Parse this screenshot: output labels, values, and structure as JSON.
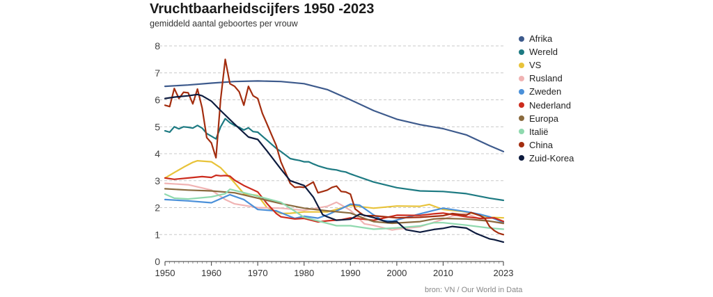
{
  "title": "Vruchtbaarheidscijfers 1950 -2023",
  "subtitle": "gemiddeld aantal geboortes per vrouw",
  "source": "bron: VN / Our World in Data",
  "chart_data": {
    "type": "line",
    "title": "Vruchtbaarheidscijfers 1950 -2023",
    "subtitle": "gemiddeld aantal geboortes per vrouw",
    "xlim": [
      1950,
      2023
    ],
    "ylim": [
      0,
      8
    ],
    "x_ticks": [
      1950,
      1960,
      1970,
      1980,
      1990,
      2000,
      2010,
      2023
    ],
    "y_ticks": [
      0,
      1,
      2,
      3,
      4,
      5,
      6,
      7,
      8
    ],
    "grid": "horizontal dashed",
    "legend_position": "right",
    "series": [
      {
        "name": "Afrika",
        "color": "#3d5a8c",
        "points": [
          [
            1950,
            6.5
          ],
          [
            1955,
            6.55
          ],
          [
            1960,
            6.62
          ],
          [
            1965,
            6.68
          ],
          [
            1970,
            6.7
          ],
          [
            1975,
            6.68
          ],
          [
            1980,
            6.6
          ],
          [
            1985,
            6.38
          ],
          [
            1990,
            6.0
          ],
          [
            1995,
            5.6
          ],
          [
            2000,
            5.28
          ],
          [
            2005,
            5.08
          ],
          [
            2010,
            4.93
          ],
          [
            2015,
            4.7
          ],
          [
            2020,
            4.3
          ],
          [
            2023,
            4.08
          ]
        ]
      },
      {
        "name": "Wereld",
        "color": "#1d7a82",
        "points": [
          [
            1950,
            4.85
          ],
          [
            1951,
            4.8
          ],
          [
            1952,
            5.0
          ],
          [
            1953,
            4.92
          ],
          [
            1954,
            5.0
          ],
          [
            1955,
            4.98
          ],
          [
            1956,
            4.95
          ],
          [
            1957,
            5.05
          ],
          [
            1958,
            4.95
          ],
          [
            1959,
            4.75
          ],
          [
            1960,
            4.65
          ],
          [
            1961,
            4.55
          ],
          [
            1962,
            5.0
          ],
          [
            1963,
            5.3
          ],
          [
            1964,
            5.15
          ],
          [
            1965,
            5.05
          ],
          [
            1966,
            4.98
          ],
          [
            1967,
            4.88
          ],
          [
            1968,
            4.96
          ],
          [
            1969,
            4.82
          ],
          [
            1970,
            4.8
          ],
          [
            1971,
            4.65
          ],
          [
            1972,
            4.5
          ],
          [
            1973,
            4.35
          ],
          [
            1974,
            4.2
          ],
          [
            1975,
            4.08
          ],
          [
            1976,
            3.95
          ],
          [
            1977,
            3.82
          ],
          [
            1978,
            3.78
          ],
          [
            1979,
            3.75
          ],
          [
            1980,
            3.7
          ],
          [
            1981,
            3.7
          ],
          [
            1982,
            3.62
          ],
          [
            1983,
            3.55
          ],
          [
            1984,
            3.5
          ],
          [
            1985,
            3.45
          ],
          [
            1986,
            3.42
          ],
          [
            1987,
            3.4
          ],
          [
            1988,
            3.35
          ],
          [
            1989,
            3.32
          ],
          [
            1990,
            3.25
          ],
          [
            1995,
            2.95
          ],
          [
            2000,
            2.74
          ],
          [
            2005,
            2.62
          ],
          [
            2010,
            2.6
          ],
          [
            2015,
            2.52
          ],
          [
            2020,
            2.35
          ],
          [
            2023,
            2.27
          ]
        ]
      },
      {
        "name": "VS",
        "color": "#e8c33a",
        "points": [
          [
            1950,
            3.1
          ],
          [
            1952,
            3.3
          ],
          [
            1954,
            3.5
          ],
          [
            1956,
            3.68
          ],
          [
            1957,
            3.74
          ],
          [
            1960,
            3.7
          ],
          [
            1962,
            3.48
          ],
          [
            1963,
            3.3
          ],
          [
            1965,
            2.92
          ],
          [
            1967,
            2.52
          ],
          [
            1970,
            2.45
          ],
          [
            1972,
            2.0
          ],
          [
            1975,
            1.78
          ],
          [
            1977,
            1.79
          ],
          [
            1980,
            1.84
          ],
          [
            1985,
            1.84
          ],
          [
            1990,
            2.08
          ],
          [
            1995,
            1.98
          ],
          [
            2000,
            2.06
          ],
          [
            2005,
            2.05
          ],
          [
            2007,
            2.12
          ],
          [
            2010,
            1.93
          ],
          [
            2015,
            1.84
          ],
          [
            2020,
            1.64
          ],
          [
            2023,
            1.62
          ]
        ]
      },
      {
        "name": "Rusland",
        "color": "#f0b3b3",
        "points": [
          [
            1950,
            2.9
          ],
          [
            1955,
            2.85
          ],
          [
            1960,
            2.65
          ],
          [
            1963,
            2.3
          ],
          [
            1965,
            2.14
          ],
          [
            1970,
            2.0
          ],
          [
            1975,
            1.98
          ],
          [
            1980,
            1.9
          ],
          [
            1985,
            2.05
          ],
          [
            1987,
            2.2
          ],
          [
            1988,
            2.1
          ],
          [
            1990,
            1.9
          ],
          [
            1993,
            1.4
          ],
          [
            1995,
            1.34
          ],
          [
            1999,
            1.17
          ],
          [
            2000,
            1.2
          ],
          [
            2005,
            1.29
          ],
          [
            2010,
            1.57
          ],
          [
            2012,
            1.69
          ],
          [
            2015,
            1.78
          ],
          [
            2018,
            1.58
          ],
          [
            2020,
            1.5
          ],
          [
            2023,
            1.41
          ]
        ]
      },
      {
        "name": "Zweden",
        "color": "#4a90d9",
        "points": [
          [
            1950,
            2.3
          ],
          [
            1955,
            2.25
          ],
          [
            1960,
            2.18
          ],
          [
            1964,
            2.48
          ],
          [
            1967,
            2.3
          ],
          [
            1970,
            1.93
          ],
          [
            1974,
            1.88
          ],
          [
            1978,
            1.6
          ],
          [
            1980,
            1.68
          ],
          [
            1983,
            1.61
          ],
          [
            1985,
            1.73
          ],
          [
            1988,
            1.96
          ],
          [
            1990,
            2.13
          ],
          [
            1992,
            2.09
          ],
          [
            1995,
            1.73
          ],
          [
            1997,
            1.52
          ],
          [
            1999,
            1.5
          ],
          [
            2000,
            1.54
          ],
          [
            2005,
            1.77
          ],
          [
            2008,
            1.9
          ],
          [
            2010,
            1.98
          ],
          [
            2015,
            1.85
          ],
          [
            2018,
            1.75
          ],
          [
            2020,
            1.66
          ],
          [
            2023,
            1.45
          ]
        ]
      },
      {
        "name": "Nederland",
        "color": "#cc2b1d",
        "points": [
          [
            1950,
            3.1
          ],
          [
            1952,
            3.05
          ],
          [
            1955,
            3.1
          ],
          [
            1958,
            3.15
          ],
          [
            1960,
            3.12
          ],
          [
            1961,
            3.2
          ],
          [
            1962,
            3.18
          ],
          [
            1963,
            3.19
          ],
          [
            1964,
            3.17
          ],
          [
            1965,
            3.02
          ],
          [
            1967,
            2.82
          ],
          [
            1970,
            2.58
          ],
          [
            1972,
            2.15
          ],
          [
            1974,
            1.78
          ],
          [
            1975,
            1.66
          ],
          [
            1978,
            1.58
          ],
          [
            1980,
            1.6
          ],
          [
            1983,
            1.47
          ],
          [
            1985,
            1.51
          ],
          [
            1988,
            1.55
          ],
          [
            1990,
            1.62
          ],
          [
            1995,
            1.53
          ],
          [
            2000,
            1.72
          ],
          [
            2005,
            1.71
          ],
          [
            2008,
            1.77
          ],
          [
            2010,
            1.8
          ],
          [
            2015,
            1.66
          ],
          [
            2018,
            1.6
          ],
          [
            2021,
            1.62
          ],
          [
            2023,
            1.49
          ]
        ]
      },
      {
        "name": "Europa",
        "color": "#8a6a3e",
        "points": [
          [
            1950,
            2.7
          ],
          [
            1955,
            2.65
          ],
          [
            1960,
            2.62
          ],
          [
            1965,
            2.55
          ],
          [
            1970,
            2.35
          ],
          [
            1975,
            2.15
          ],
          [
            1980,
            1.98
          ],
          [
            1985,
            1.88
          ],
          [
            1990,
            1.8
          ],
          [
            1993,
            1.6
          ],
          [
            1995,
            1.48
          ],
          [
            1999,
            1.42
          ],
          [
            2000,
            1.43
          ],
          [
            2005,
            1.48
          ],
          [
            2008,
            1.58
          ],
          [
            2010,
            1.6
          ],
          [
            2015,
            1.58
          ],
          [
            2020,
            1.5
          ],
          [
            2023,
            1.42
          ]
        ]
      },
      {
        "name": "Italië",
        "color": "#8fd9ae",
        "points": [
          [
            1950,
            2.5
          ],
          [
            1952,
            2.35
          ],
          [
            1955,
            2.32
          ],
          [
            1960,
            2.4
          ],
          [
            1963,
            2.52
          ],
          [
            1964,
            2.68
          ],
          [
            1966,
            2.6
          ],
          [
            1970,
            2.42
          ],
          [
            1975,
            2.2
          ],
          [
            1977,
            1.98
          ],
          [
            1980,
            1.64
          ],
          [
            1985,
            1.42
          ],
          [
            1987,
            1.33
          ],
          [
            1990,
            1.33
          ],
          [
            1995,
            1.2
          ],
          [
            2000,
            1.25
          ],
          [
            2005,
            1.32
          ],
          [
            2008,
            1.44
          ],
          [
            2010,
            1.44
          ],
          [
            2015,
            1.35
          ],
          [
            2020,
            1.24
          ],
          [
            2023,
            1.2
          ]
        ]
      },
      {
        "name": "China",
        "color": "#a32d0f",
        "points": [
          [
            1950,
            5.8
          ],
          [
            1951,
            5.75
          ],
          [
            1952,
            6.42
          ],
          [
            1953,
            6.05
          ],
          [
            1954,
            6.28
          ],
          [
            1955,
            6.26
          ],
          [
            1956,
            5.85
          ],
          [
            1957,
            6.4
          ],
          [
            1958,
            5.7
          ],
          [
            1959,
            4.6
          ],
          [
            1960,
            4.4
          ],
          [
            1961,
            3.85
          ],
          [
            1962,
            6.02
          ],
          [
            1963,
            7.5
          ],
          [
            1964,
            6.6
          ],
          [
            1965,
            6.5
          ],
          [
            1966,
            6.3
          ],
          [
            1967,
            5.8
          ],
          [
            1968,
            6.5
          ],
          [
            1969,
            6.15
          ],
          [
            1970,
            6.05
          ],
          [
            1971,
            5.5
          ],
          [
            1972,
            5.1
          ],
          [
            1973,
            4.7
          ],
          [
            1974,
            4.3
          ],
          [
            1975,
            3.7
          ],
          [
            1976,
            3.3
          ],
          [
            1977,
            2.9
          ],
          [
            1978,
            2.75
          ],
          [
            1979,
            2.77
          ],
          [
            1980,
            2.75
          ],
          [
            1981,
            2.85
          ],
          [
            1982,
            2.95
          ],
          [
            1983,
            2.55
          ],
          [
            1984,
            2.6
          ],
          [
            1985,
            2.65
          ],
          [
            1986,
            2.75
          ],
          [
            1987,
            2.8
          ],
          [
            1988,
            2.6
          ],
          [
            1989,
            2.58
          ],
          [
            1990,
            2.5
          ],
          [
            1991,
            1.95
          ],
          [
            1992,
            1.82
          ],
          [
            1993,
            1.7
          ],
          [
            1995,
            1.7
          ],
          [
            2000,
            1.62
          ],
          [
            2005,
            1.64
          ],
          [
            2010,
            1.7
          ],
          [
            2012,
            1.78
          ],
          [
            2015,
            1.72
          ],
          [
            2016,
            1.82
          ],
          [
            2017,
            1.76
          ],
          [
            2018,
            1.7
          ],
          [
            2019,
            1.6
          ],
          [
            2020,
            1.3
          ],
          [
            2021,
            1.15
          ],
          [
            2022,
            1.05
          ],
          [
            2023,
            1.0
          ]
        ]
      },
      {
        "name": "Zuid-Korea",
        "color": "#0d1b3e",
        "points": [
          [
            1950,
            6.05
          ],
          [
            1952,
            6.1
          ],
          [
            1955,
            6.15
          ],
          [
            1957,
            6.2
          ],
          [
            1958,
            6.15
          ],
          [
            1960,
            5.95
          ],
          [
            1962,
            5.6
          ],
          [
            1965,
            5.1
          ],
          [
            1968,
            4.62
          ],
          [
            1970,
            4.53
          ],
          [
            1972,
            4.1
          ],
          [
            1975,
            3.43
          ],
          [
            1977,
            3.0
          ],
          [
            1980,
            2.82
          ],
          [
            1982,
            2.39
          ],
          [
            1983,
            2.06
          ],
          [
            1984,
            1.74
          ],
          [
            1985,
            1.66
          ],
          [
            1987,
            1.53
          ],
          [
            1990,
            1.57
          ],
          [
            1992,
            1.76
          ],
          [
            1995,
            1.63
          ],
          [
            1998,
            1.46
          ],
          [
            2000,
            1.48
          ],
          [
            2002,
            1.18
          ],
          [
            2005,
            1.09
          ],
          [
            2008,
            1.19
          ],
          [
            2010,
            1.23
          ],
          [
            2012,
            1.3
          ],
          [
            2015,
            1.24
          ],
          [
            2017,
            1.05
          ],
          [
            2018,
            0.98
          ],
          [
            2020,
            0.84
          ],
          [
            2021,
            0.81
          ],
          [
            2023,
            0.72
          ]
        ]
      }
    ]
  }
}
